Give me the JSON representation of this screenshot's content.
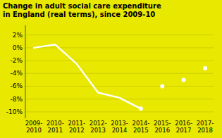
{
  "chart_data": {
    "type": "line",
    "title": "Change in adult social care expenditure\nin England (real terms), since 2009-10",
    "categories": [
      "2009-\n2010",
      "2010-\n2011",
      "2011-\n2012",
      "2012-\n2013",
      "2013-\n2014",
      "2014-\n2015",
      "2015-\n2016",
      "2016-\n2017",
      "2017-\n2018"
    ],
    "series": [
      {
        "color": "#ffffff",
        "line_style": "solid",
        "values": [
          0.0,
          0.5,
          -2.5,
          -7.0,
          -7.8,
          -9.5,
          null,
          null,
          null
        ]
      },
      {
        "color": "#ffffff",
        "line_style": "none",
        "marker": "circle",
        "values": [
          null,
          null,
          null,
          null,
          null,
          -9.5,
          -6.0,
          -5.0,
          -3.2
        ]
      }
    ],
    "ylim": [
      -11.0,
      3.5
    ],
    "yticks": [
      {
        "value": 2,
        "label": "2%"
      },
      {
        "value": 0,
        "label": "0%"
      },
      {
        "value": -2,
        "label": "-2%"
      },
      {
        "value": -4,
        "label": "-4%"
      },
      {
        "value": -6,
        "label": "-6%"
      },
      {
        "value": -8,
        "label": "-8%"
      },
      {
        "value": -10,
        "label": "-10%"
      }
    ],
    "grid": true
  }
}
